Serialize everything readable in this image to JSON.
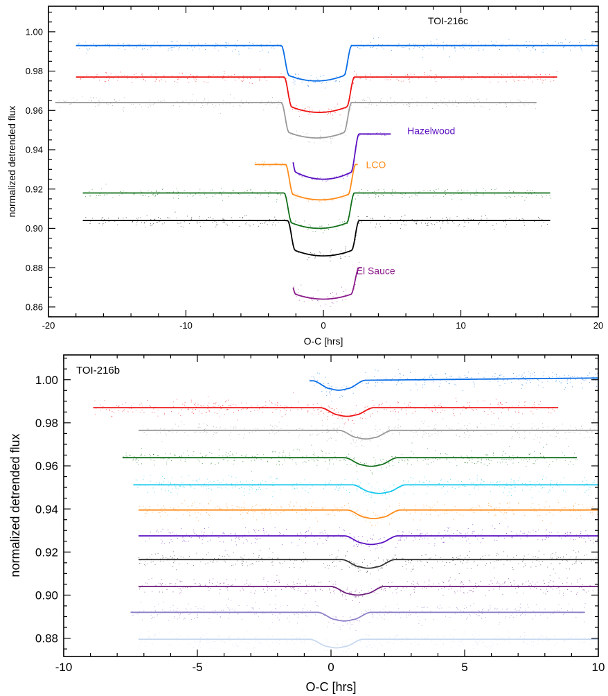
{
  "chart_data": [
    {
      "type": "line",
      "title": "TOI-216c",
      "xlabel": "O-C [hrs]",
      "ylabel": "normalized detrended flux",
      "xlim": [
        -20,
        20
      ],
      "ylim": [
        0.855,
        1.013
      ],
      "xticks": [
        "-20",
        "-10",
        "0",
        "10",
        "20"
      ],
      "yticks": [
        "0.86",
        "0.88",
        "0.90",
        "0.92",
        "0.94",
        "0.96",
        "0.98",
        "1.00"
      ],
      "grid": false,
      "annotations": [
        {
          "text": "Hazelwood",
          "x": 6.1,
          "y": 0.9497,
          "color": "#5a0fc0"
        },
        {
          "text": "LCO",
          "x": 3.1,
          "y": 0.9325,
          "color": "#ff8c1a"
        },
        {
          "text": "El Sauce",
          "x": 2.4,
          "y": 0.8785,
          "color": "#8a1a8a"
        }
      ],
      "series": [
        {
          "color": "#0a6ee6",
          "baseline": 0.993,
          "depth": 0.018,
          "x_start": -18.0,
          "x_end": 20.0,
          "t0": -0.5,
          "half_width": 2.55,
          "ingress": 0.55,
          "scatter": 0.0025
        },
        {
          "color": "#ee1111",
          "baseline": 0.977,
          "depth": 0.018,
          "x_start": -18.0,
          "x_end": 17.0,
          "t0": -0.3,
          "half_width": 2.55,
          "ingress": 0.55,
          "scatter": 0.0025
        },
        {
          "color": "#999999",
          "baseline": 0.964,
          "depth": 0.018,
          "x_start": -19.5,
          "x_end": 15.5,
          "t0": -0.5,
          "half_width": 2.55,
          "ingress": 0.55,
          "scatter": 0.0025
        },
        {
          "color": "#5a0fc0",
          "baseline": 0.948,
          "depth": 0.023,
          "x_start": -2.2,
          "x_end": 4.9,
          "t0": 0.0,
          "half_width": 2.6,
          "ingress": 0.6,
          "scatter": 0.001
        },
        {
          "color": "#ff8c1a",
          "baseline": 0.9325,
          "depth": 0.018,
          "x_start": -5.0,
          "x_end": 2.5,
          "t0": -0.2,
          "half_width": 2.55,
          "ingress": 0.55,
          "scatter": 0.0012
        },
        {
          "color": "#11701a",
          "baseline": 0.918,
          "depth": 0.018,
          "x_start": -17.5,
          "x_end": 16.5,
          "t0": -0.3,
          "half_width": 2.55,
          "ingress": 0.55,
          "scatter": 0.0025
        },
        {
          "color": "#000000",
          "baseline": 0.904,
          "depth": 0.018,
          "x_start": -17.5,
          "x_end": 16.5,
          "t0": 0.0,
          "half_width": 2.6,
          "ingress": 0.55,
          "scatter": 0.0025
        },
        {
          "color": "#8a1a8a",
          "baseline": 0.88,
          "depth": 0.016,
          "x_start": -2.2,
          "x_end": 2.8,
          "t0": 0.0,
          "half_width": 2.6,
          "ingress": 0.6,
          "scatter": 0.004
        }
      ]
    },
    {
      "type": "line",
      "title": "TOI-216b",
      "xlabel": "O-C [hrs]",
      "ylabel": "normalized detrended flux",
      "xlim": [
        -10,
        10
      ],
      "ylim": [
        0.8715,
        1.0115
      ],
      "xticks": [
        "-10",
        "-5",
        "0",
        "5",
        "10"
      ],
      "yticks": [
        "0.88",
        "0.90",
        "0.92",
        "0.94",
        "0.96",
        "0.98",
        "1.00"
      ],
      "grid": false,
      "series": [
        {
          "color": "#0a6ee6",
          "baseline": 0.9995,
          "depth": 0.0045,
          "x_start": -0.8,
          "x_end": 10.0,
          "t0": 0.3,
          "half_width": 1.0,
          "ingress": 0.7,
          "scatter": 0.0035,
          "slope": 0.00012
        },
        {
          "color": "#ee1111",
          "baseline": 0.987,
          "depth": 0.004,
          "x_start": -8.9,
          "x_end": 8.5,
          "t0": 0.6,
          "half_width": 1.0,
          "ingress": 0.7,
          "scatter": 0.0035
        },
        {
          "color": "#999999",
          "baseline": 0.9765,
          "depth": 0.004,
          "x_start": -7.2,
          "x_end": 10.0,
          "t0": 1.3,
          "half_width": 1.0,
          "ingress": 0.7,
          "scatter": 0.0035
        },
        {
          "color": "#11701a",
          "baseline": 0.9638,
          "depth": 0.004,
          "x_start": -7.8,
          "x_end": 9.2,
          "t0": 1.5,
          "half_width": 1.0,
          "ingress": 0.7,
          "scatter": 0.0035
        },
        {
          "color": "#12c8ee",
          "baseline": 0.9512,
          "depth": 0.004,
          "x_start": -7.4,
          "x_end": 10.0,
          "t0": 1.8,
          "half_width": 1.0,
          "ingress": 0.7,
          "scatter": 0.0035
        },
        {
          "color": "#ff8c1a",
          "baseline": 0.9395,
          "depth": 0.004,
          "x_start": -7.2,
          "x_end": 10.0,
          "t0": 1.6,
          "half_width": 1.0,
          "ingress": 0.7,
          "scatter": 0.0035
        },
        {
          "color": "#5a0fc0",
          "baseline": 0.9275,
          "depth": 0.004,
          "x_start": -7.2,
          "x_end": 10.0,
          "t0": 1.5,
          "half_width": 1.0,
          "ingress": 0.7,
          "scatter": 0.0035
        },
        {
          "color": "#333333",
          "baseline": 0.9165,
          "depth": 0.004,
          "x_start": -7.2,
          "x_end": 10.0,
          "t0": 1.4,
          "half_width": 1.0,
          "ingress": 0.7,
          "scatter": 0.0035
        },
        {
          "color": "#6a1a7a",
          "baseline": 0.904,
          "depth": 0.004,
          "x_start": -7.2,
          "x_end": 10.0,
          "t0": 1.0,
          "half_width": 1.0,
          "ingress": 0.7,
          "scatter": 0.0035
        },
        {
          "color": "#8f80c8",
          "baseline": 0.892,
          "depth": 0.004,
          "x_start": -7.5,
          "x_end": 9.5,
          "t0": 0.5,
          "half_width": 1.0,
          "ingress": 0.7,
          "scatter": 0.0035
        },
        {
          "color": "#c8d8ee",
          "baseline": 0.8795,
          "depth": 0.004,
          "x_start": -7.2,
          "x_end": 10.0,
          "t0": 0.2,
          "half_width": 1.0,
          "ingress": 0.7,
          "scatter": 0.0035
        }
      ]
    }
  ]
}
